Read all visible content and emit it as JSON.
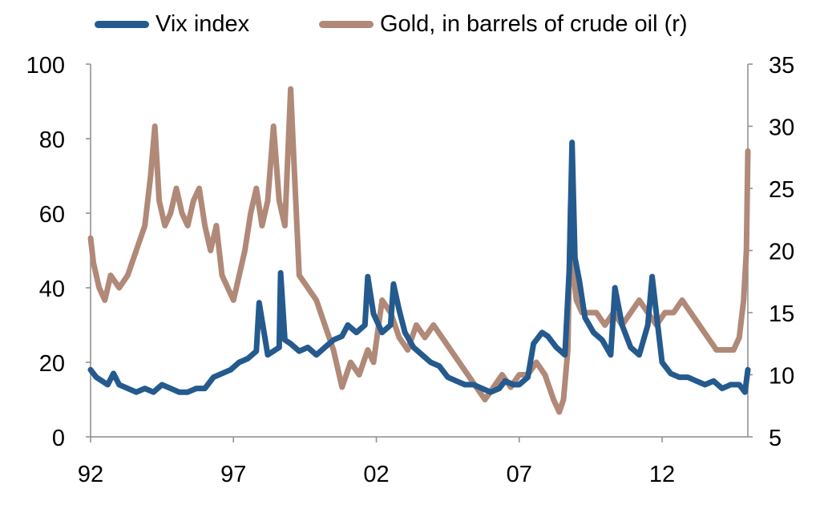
{
  "chart_data": {
    "type": "line",
    "title": "",
    "xlabel": "",
    "ylabel": "",
    "x_tick_labels": [
      "92",
      "97",
      "02",
      "07",
      "12"
    ],
    "x_tick_years": [
      1992,
      1997,
      2002,
      2007,
      2012
    ],
    "xlim": [
      1992,
      2015
    ],
    "ylim_left": [
      0,
      100
    ],
    "ylim_right": [
      5,
      35
    ],
    "y_ticks_left": [
      0,
      20,
      40,
      60,
      80,
      100
    ],
    "y_ticks_right": [
      5,
      10,
      15,
      20,
      25,
      30,
      35
    ],
    "grid": false,
    "legend_position": "top",
    "series": [
      {
        "name": "Vix index",
        "axis": "left",
        "color": "#245a8e",
        "x": [
          1992.0,
          1992.2,
          1992.4,
          1992.6,
          1992.8,
          1993.0,
          1993.3,
          1993.6,
          1993.9,
          1994.2,
          1994.5,
          1994.8,
          1995.1,
          1995.4,
          1995.7,
          1996.0,
          1996.3,
          1996.6,
          1996.9,
          1997.2,
          1997.5,
          1997.8,
          1997.9,
          1998.2,
          1998.6,
          1998.65,
          1998.8,
          1999.0,
          1999.3,
          1999.6,
          1999.9,
          2000.2,
          2000.5,
          2000.8,
          2001.0,
          2001.3,
          2001.6,
          2001.7,
          2001.9,
          2002.2,
          2002.5,
          2002.6,
          2002.8,
          2003.0,
          2003.3,
          2003.6,
          2003.9,
          2004.2,
          2004.5,
          2004.8,
          2005.1,
          2005.4,
          2005.7,
          2006.0,
          2006.3,
          2006.5,
          2006.8,
          2007.0,
          2007.3,
          2007.5,
          2007.8,
          2008.0,
          2008.3,
          2008.6,
          2008.75,
          2008.85,
          2008.95,
          2009.1,
          2009.3,
          2009.6,
          2009.9,
          2010.2,
          2010.35,
          2010.6,
          2010.9,
          2011.2,
          2011.5,
          2011.65,
          2011.8,
          2012.0,
          2012.3,
          2012.6,
          2012.9,
          2013.2,
          2013.5,
          2013.8,
          2014.1,
          2014.4,
          2014.7,
          2014.9,
          2015.0
        ],
        "y": [
          18,
          16,
          15,
          14,
          17,
          14,
          13,
          12,
          13,
          12,
          14,
          13,
          12,
          12,
          13,
          13,
          16,
          17,
          18,
          20,
          21,
          23,
          36,
          22,
          24,
          44,
          26,
          25,
          23,
          24,
          22,
          24,
          26,
          27,
          30,
          28,
          30,
          43,
          33,
          28,
          30,
          41,
          34,
          28,
          24,
          22,
          20,
          19,
          16,
          15,
          14,
          14,
          13,
          12,
          13,
          15,
          14,
          14,
          16,
          25,
          28,
          27,
          24,
          22,
          45,
          79,
          48,
          42,
          32,
          28,
          26,
          22,
          40,
          30,
          24,
          22,
          30,
          43,
          33,
          20,
          17,
          16,
          16,
          15,
          14,
          15,
          13,
          14,
          14,
          12,
          18
        ]
      },
      {
        "name": "Gold, in barrels of crude oil (r)",
        "axis": "right",
        "color": "#b08978",
        "x": [
          1992.0,
          1992.1,
          1992.3,
          1992.5,
          1992.7,
          1993.0,
          1993.3,
          1993.6,
          1993.9,
          1994.1,
          1994.25,
          1994.4,
          1994.6,
          1994.8,
          1995.0,
          1995.2,
          1995.4,
          1995.6,
          1995.8,
          1996.0,
          1996.2,
          1996.4,
          1996.6,
          1996.8,
          1997.0,
          1997.2,
          1997.4,
          1997.6,
          1997.8,
          1998.0,
          1998.2,
          1998.4,
          1998.6,
          1998.8,
          1999.0,
          1999.1,
          1999.3,
          1999.6,
          1999.9,
          2000.2,
          2000.5,
          2000.8,
          2001.1,
          2001.4,
          2001.7,
          2001.9,
          2002.2,
          2002.5,
          2002.8,
          2003.1,
          2003.4,
          2003.7,
          2004.0,
          2004.3,
          2004.6,
          2004.9,
          2005.2,
          2005.5,
          2005.8,
          2006.1,
          2006.4,
          2006.7,
          2007.0,
          2007.3,
          2007.6,
          2007.9,
          2008.2,
          2008.4,
          2008.55,
          2008.7,
          2008.8,
          2008.9,
          2009.0,
          2009.2,
          2009.4,
          2009.7,
          2010.0,
          2010.3,
          2010.6,
          2010.9,
          2011.2,
          2011.5,
          2011.8,
          2012.1,
          2012.4,
          2012.7,
          2013.0,
          2013.3,
          2013.6,
          2013.9,
          2014.2,
          2014.5,
          2014.7,
          2014.85,
          2014.95,
          2015.0
        ],
        "y": [
          21,
          19,
          17,
          16,
          18,
          17,
          18,
          20,
          22,
          26,
          30,
          24,
          22,
          23,
          25,
          23,
          22,
          24,
          25,
          22,
          20,
          22,
          18,
          17,
          16,
          18,
          20,
          23,
          25,
          22,
          24,
          30,
          24,
          22,
          33,
          28,
          18,
          17,
          16,
          14,
          12,
          9,
          11,
          10,
          12,
          11,
          16,
          15,
          13,
          12,
          14,
          13,
          14,
          13,
          12,
          11,
          10,
          9,
          8,
          9,
          10,
          9,
          10,
          10,
          11,
          10,
          8,
          7,
          8,
          12,
          24,
          18,
          16,
          15,
          15,
          15,
          14,
          15,
          14,
          15,
          16,
          15,
          14,
          15,
          15,
          16,
          15,
          14,
          13,
          12,
          12,
          12,
          13,
          16,
          20,
          28
        ]
      }
    ]
  }
}
